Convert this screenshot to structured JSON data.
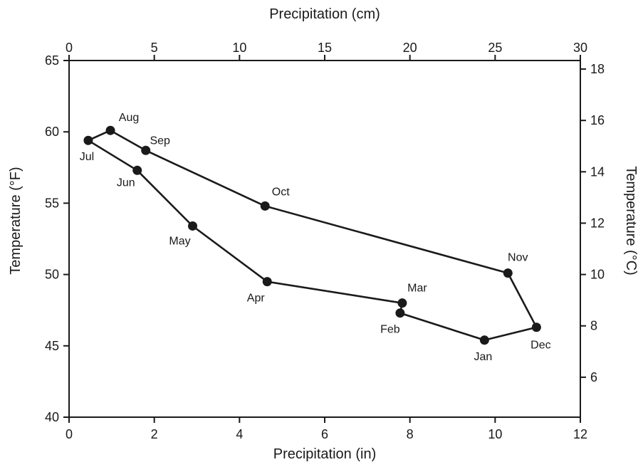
{
  "chart_data": {
    "type": "line",
    "xlabel_bottom": "Precipitation (in)",
    "xlabel_top": "Precipitation (cm)",
    "ylabel_left": "Temperature (°F)",
    "ylabel_right": "Temperature (°C)",
    "xlim_in": [
      0,
      12
    ],
    "ylim_f": [
      40,
      65
    ],
    "xlim_cm": [
      0,
      30
    ],
    "x_ticks_in": [
      "0",
      "2",
      "4",
      "6",
      "8",
      "10",
      "12"
    ],
    "y_ticks_f": [
      "40",
      "45",
      "50",
      "55",
      "60",
      "65"
    ],
    "x_ticks_cm": [
      "0",
      "5",
      "10",
      "15",
      "20",
      "25",
      "30"
    ],
    "y_ticks_c": [
      "6",
      "8",
      "10",
      "12",
      "14",
      "16",
      "18"
    ],
    "grid": false,
    "legend": "none",
    "series": [
      {
        "points": [
          {
            "label": "Jan",
            "x": 9.75,
            "y": 45.4
          },
          {
            "label": "Feb",
            "x": 7.77,
            "y": 47.3
          },
          {
            "label": "Mar",
            "x": 7.82,
            "y": 48.0
          },
          {
            "label": "Apr",
            "x": 4.65,
            "y": 49.5
          },
          {
            "label": "May",
            "x": 2.9,
            "y": 53.4
          },
          {
            "label": "Jun",
            "x": 1.6,
            "y": 57.3
          },
          {
            "label": "Jul",
            "x": 0.45,
            "y": 59.4
          },
          {
            "label": "Aug",
            "x": 0.97,
            "y": 60.1
          },
          {
            "label": "Sep",
            "x": 1.8,
            "y": 58.7
          },
          {
            "label": "Oct",
            "x": 4.6,
            "y": 54.8
          },
          {
            "label": "Nov",
            "x": 10.3,
            "y": 50.1
          },
          {
            "label": "Dec",
            "x": 10.97,
            "y": 46.3
          }
        ]
      }
    ]
  }
}
